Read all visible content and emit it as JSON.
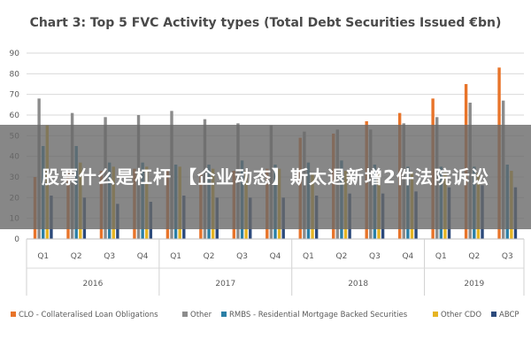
{
  "chart_data": {
    "type": "bar",
    "title": "Chart 3: Top 5 FVC Activity types (Total Debt Securities Issued €bn)",
    "xlabel": "",
    "ylabel": "",
    "ylim": [
      0,
      90
    ],
    "yticks": [
      0,
      10,
      20,
      30,
      40,
      50,
      60,
      70,
      80,
      90
    ],
    "grid": true,
    "legend_position": "bottom",
    "categories": [
      "Q1",
      "Q2",
      "Q3",
      "Q4",
      "Q1",
      "Q2",
      "Q3",
      "Q4",
      "Q1",
      "Q2",
      "Q3",
      "Q4",
      "Q1",
      "Q2",
      "Q3"
    ],
    "years": [
      {
        "label": "2016",
        "count": 4
      },
      {
        "label": "2017",
        "count": 4
      },
      {
        "label": "2018",
        "count": 4
      },
      {
        "label": "2019",
        "count": 3
      }
    ],
    "series": [
      {
        "name": "CLO - Collateralised Loan Obligations",
        "color": "#e8742a",
        "values": [
          30,
          32,
          33,
          34,
          33,
          32,
          33,
          34,
          49,
          51,
          57,
          61,
          68,
          75,
          83
        ]
      },
      {
        "name": "Other",
        "color": "#8c8c8c",
        "values": [
          68,
          61,
          59,
          60,
          62,
          58,
          56,
          55,
          52,
          53,
          53,
          56,
          59,
          66,
          67
        ]
      },
      {
        "name": "RMBS - Residential Mortgage Backed Securities",
        "color": "#2b7fa6",
        "values": [
          45,
          45,
          37,
          37,
          36,
          36,
          38,
          36,
          37,
          38,
          36,
          35,
          35,
          35,
          36
        ]
      },
      {
        "name": "Other CDO",
        "color": "#e6b422",
        "values": [
          55,
          37,
          35,
          35,
          35,
          34,
          33,
          34,
          32,
          33,
          32,
          32,
          32,
          32,
          33
        ]
      },
      {
        "name": "ABCP",
        "color": "#2c4a7c",
        "values": [
          21,
          20,
          17,
          18,
          21,
          20,
          20,
          20,
          21,
          22,
          22,
          23,
          25,
          26,
          25
        ]
      }
    ]
  },
  "overlay": {
    "text": "股票什么是杠杆 【企业动态】斯太退新增2件法院诉讼"
  }
}
